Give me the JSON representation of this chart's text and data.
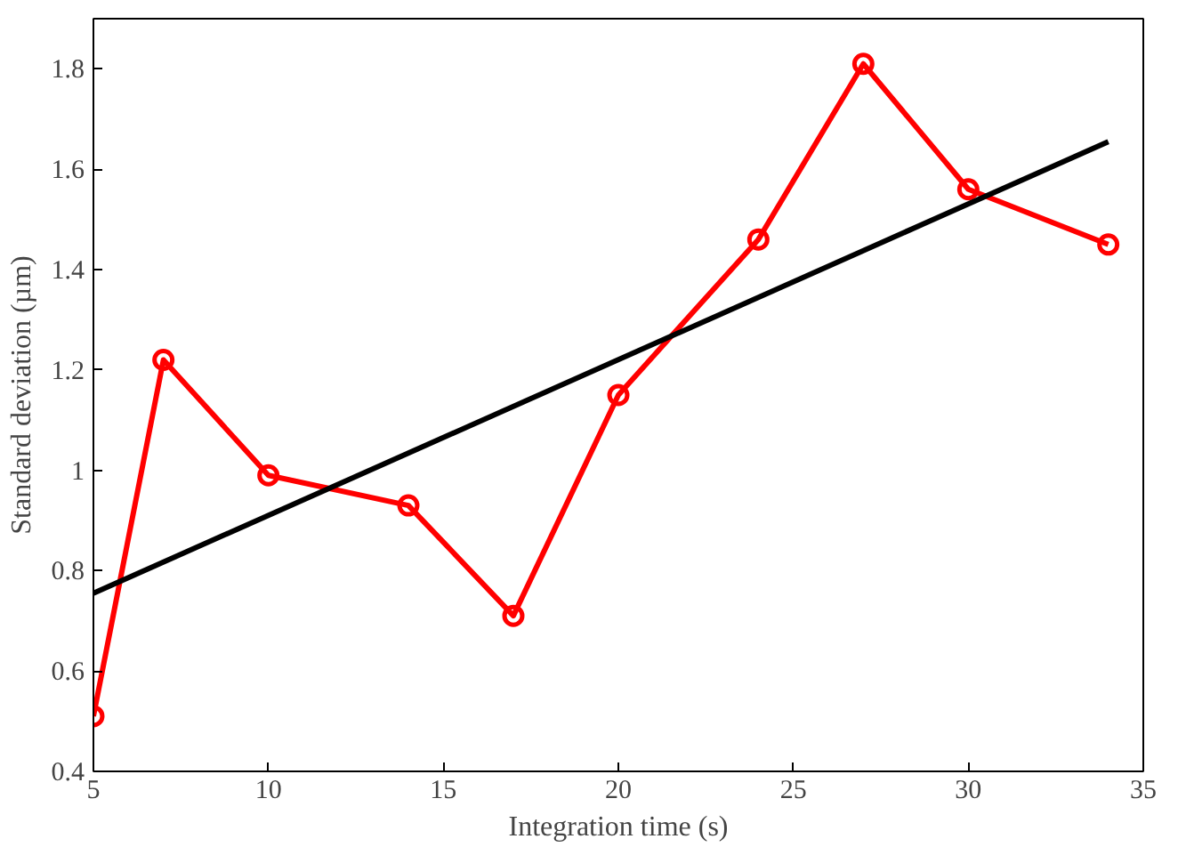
{
  "chart_data": {
    "type": "line",
    "xlabel": "Integration time (s)",
    "ylabel": "Standard deviation (µm)",
    "xlim": [
      5,
      35
    ],
    "ylim": [
      0.4,
      1.9
    ],
    "xticks": [
      5,
      10,
      15,
      20,
      25,
      30,
      35
    ],
    "yticks": [
      0.4,
      0.6,
      0.8,
      1,
      1.2,
      1.4,
      1.6,
      1.8
    ],
    "grid": false,
    "series": [
      {
        "color": "#ff0000",
        "marker": "circle",
        "x": [
          5,
          7,
          10,
          14,
          17,
          20,
          24,
          27,
          30,
          34
        ],
        "values": [
          0.51,
          1.22,
          0.99,
          0.93,
          0.71,
          1.15,
          1.46,
          1.81,
          1.56,
          1.45
        ]
      },
      {
        "color": "#000000",
        "marker": "none",
        "x": [
          5,
          34
        ],
        "values": [
          0.755,
          1.655
        ]
      }
    ]
  }
}
